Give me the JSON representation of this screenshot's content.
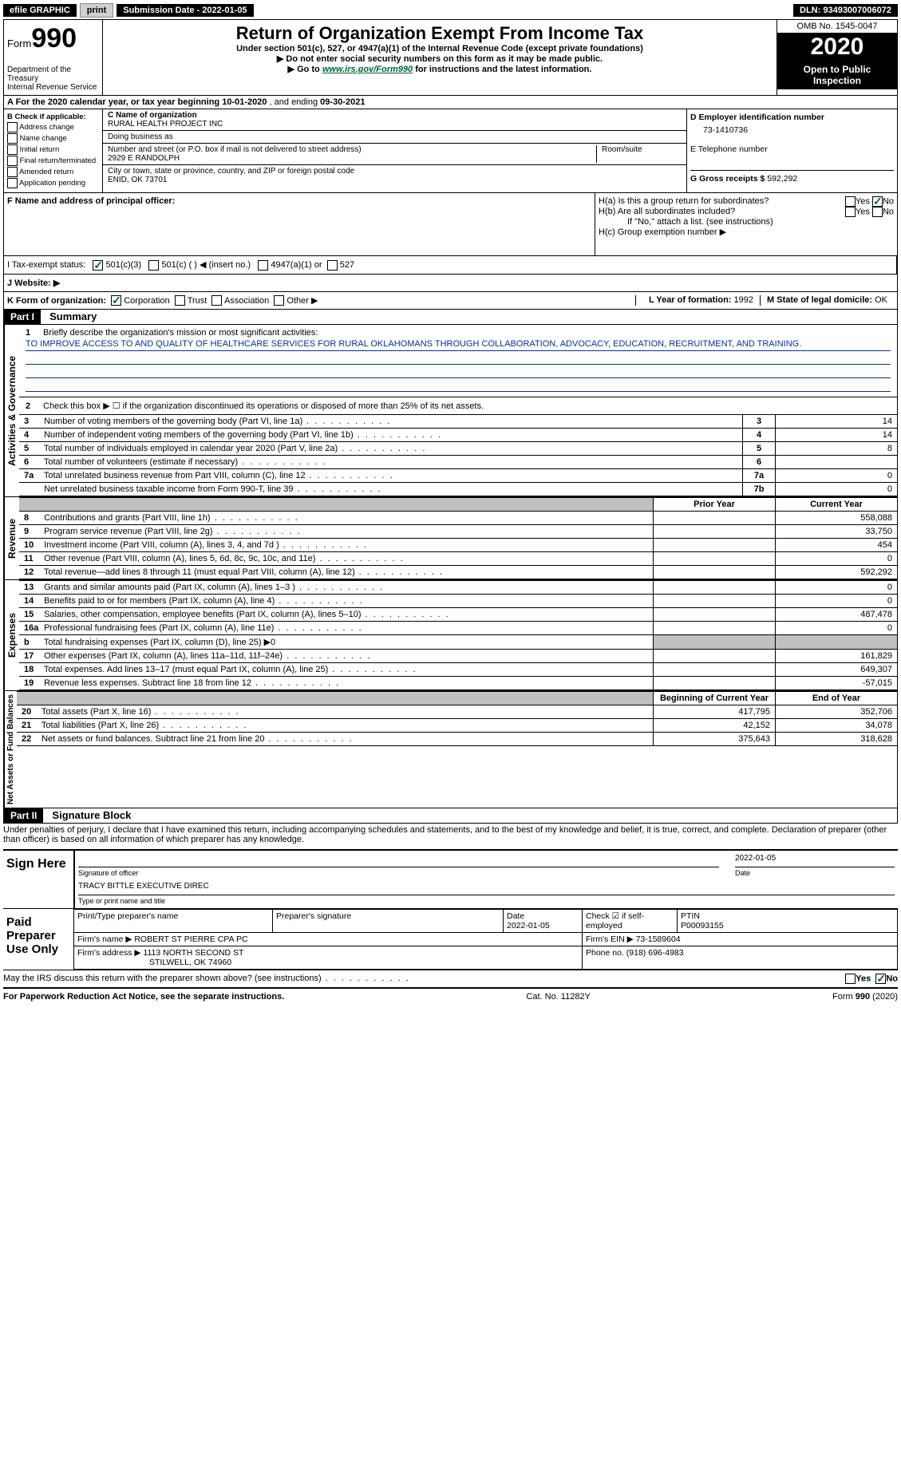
{
  "top": {
    "efile": "efile GRAPHIC",
    "print": "print",
    "sub_date_label": "Submission Date - ",
    "sub_date": "2022-01-05",
    "dln_label": "DLN: ",
    "dln": "93493007006072"
  },
  "header": {
    "form_prefix": "Form",
    "form_number": "990",
    "dept": "Department of the Treasury\nInternal Revenue Service",
    "title": "Return of Organization Exempt From Income Tax",
    "subtitle": "Under section 501(c), 527, or 4947(a)(1) of the Internal Revenue Code (except private foundations)",
    "instr1": "▶ Do not enter social security numbers on this form as it may be made public.",
    "instr2_pre": "▶ Go to ",
    "instr2_link": "www.irs.gov/Form990",
    "instr2_post": " for instructions and the latest information.",
    "omb": "OMB No. 1545-0047",
    "year": "2020",
    "open": "Open to Public Inspection"
  },
  "section_a": {
    "prefix": "A For the 2020 calendar year, or tax year beginning ",
    "begin": "10-01-2020",
    "mid": " , and ending ",
    "end": "09-30-2021"
  },
  "box_b": {
    "label": "B Check if applicable:",
    "addr": "Address change",
    "name": "Name change",
    "init": "Initial return",
    "final": "Final return/terminated",
    "amend": "Amended return",
    "app": "Application pending"
  },
  "box_c": {
    "name_label": "C Name of organization",
    "name": "RURAL HEALTH PROJECT INC",
    "dba_label": "Doing business as",
    "dba": "",
    "street_label": "Number and street (or P.O. box if mail is not delivered to street address)",
    "room_label": "Room/suite",
    "street": "2929 E RANDOLPH",
    "city_label": "City or town, state or province, country, and ZIP or foreign postal code",
    "city": "ENID, OK  73701"
  },
  "box_de": {
    "d_label": "D Employer identification number",
    "ein": "73-1410736",
    "e_label": "E Telephone number",
    "phone": "",
    "g_label": "G Gross receipts $ ",
    "g_amount": "592,292"
  },
  "box_f": {
    "label": "F Name and address of principal officer:",
    "value": ""
  },
  "box_h": {
    "ha": "H(a)  Is this a group return for subordinates?",
    "hb": "H(b)  Are all subordinates included?",
    "hb_note": "If \"No,\" attach a list. (see instructions)",
    "hc": "H(c)  Group exemption number ▶",
    "yes": "Yes",
    "no": "No"
  },
  "box_i": {
    "label": "I   Tax-exempt status:",
    "opt1": "501(c)(3)",
    "opt2": "501(c) (  ) ◀ (insert no.)",
    "opt3": "4947(a)(1) or",
    "opt4": "527"
  },
  "box_j": {
    "label": "J   Website: ▶"
  },
  "box_k": {
    "label": "K Form of organization:",
    "corp": "Corporation",
    "trust": "Trust",
    "assoc": "Association",
    "other": "Other ▶",
    "l_label": "L Year of formation: ",
    "l_val": "1992",
    "m_label": "M State of legal domicile: ",
    "m_val": "OK"
  },
  "part1": {
    "header": "Part I",
    "title": "Summary",
    "l1": "Briefly describe the organization's mission or most significant activities:",
    "mission": "TO IMPROVE ACCESS TO AND QUALITY OF HEALTHCARE SERVICES FOR RURAL OKLAHOMANS THROUGH COLLABORATION, ADVOCACY, EDUCATION, RECRUITMENT, AND TRAINING.",
    "l2": "Check this box ▶ ☐ if the organization discontinued its operations or disposed of more than 25% of its net assets.",
    "vlabel1": "Activities & Governance",
    "vlabel2": "Revenue",
    "vlabel3": "Expenses",
    "vlabel4": "Net Assets or Fund Balances",
    "prior_year": "Prior Year",
    "current_year": "Current Year",
    "begin_year": "Beginning of Current Year",
    "end_year": "End of Year",
    "rows_gov": [
      {
        "n": "3",
        "t": "Number of voting members of the governing body (Part VI, line 1a)",
        "k": "3",
        "v": "14"
      },
      {
        "n": "4",
        "t": "Number of independent voting members of the governing body (Part VI, line 1b)",
        "k": "4",
        "v": "14"
      },
      {
        "n": "5",
        "t": "Total number of individuals employed in calendar year 2020 (Part V, line 2a)",
        "k": "5",
        "v": "8"
      },
      {
        "n": "6",
        "t": "Total number of volunteers (estimate if necessary)",
        "k": "6",
        "v": ""
      },
      {
        "n": "7a",
        "t": "Total unrelated business revenue from Part VIII, column (C), line 12",
        "k": "7a",
        "v": "0"
      },
      {
        "n": "",
        "t": "Net unrelated business taxable income from Form 990-T, line 39",
        "k": "7b",
        "v": "0"
      }
    ],
    "rows_rev": [
      {
        "n": "8",
        "t": "Contributions and grants (Part VIII, line 1h)",
        "p": "",
        "c": "558,088"
      },
      {
        "n": "9",
        "t": "Program service revenue (Part VIII, line 2g)",
        "p": "",
        "c": "33,750"
      },
      {
        "n": "10",
        "t": "Investment income (Part VIII, column (A), lines 3, 4, and 7d )",
        "p": "",
        "c": "454"
      },
      {
        "n": "11",
        "t": "Other revenue (Part VIII, column (A), lines 5, 6d, 8c, 9c, 10c, and 11e)",
        "p": "",
        "c": "0"
      },
      {
        "n": "12",
        "t": "Total revenue—add lines 8 through 11 (must equal Part VIII, column (A), line 12)",
        "p": "",
        "c": "592,292"
      }
    ],
    "rows_exp": [
      {
        "n": "13",
        "t": "Grants and similar amounts paid (Part IX, column (A), lines 1–3 )",
        "p": "",
        "c": "0"
      },
      {
        "n": "14",
        "t": "Benefits paid to or for members (Part IX, column (A), line 4)",
        "p": "",
        "c": "0"
      },
      {
        "n": "15",
        "t": "Salaries, other compensation, employee benefits (Part IX, column (A), lines 5–10)",
        "p": "",
        "c": "487,478"
      },
      {
        "n": "16a",
        "t": "Professional fundraising fees (Part IX, column (A), line 11e)",
        "p": "",
        "c": "0"
      },
      {
        "n": "b",
        "t": "Total fundraising expenses (Part IX, column (D), line 25) ▶0",
        "shaded": true
      },
      {
        "n": "17",
        "t": "Other expenses (Part IX, column (A), lines 11a–11d, 11f–24e)",
        "p": "",
        "c": "161,829"
      },
      {
        "n": "18",
        "t": "Total expenses. Add lines 13–17 (must equal Part IX, column (A), line 25)",
        "p": "",
        "c": "649,307"
      },
      {
        "n": "19",
        "t": "Revenue less expenses. Subtract line 18 from line 12",
        "p": "",
        "c": "-57,015"
      }
    ],
    "rows_net": [
      {
        "n": "20",
        "t": "Total assets (Part X, line 16)",
        "p": "417,795",
        "c": "352,706"
      },
      {
        "n": "21",
        "t": "Total liabilities (Part X, line 26)",
        "p": "42,152",
        "c": "34,078"
      },
      {
        "n": "22",
        "t": "Net assets or fund balances. Subtract line 21 from line 20",
        "p": "375,643",
        "c": "318,628"
      }
    ]
  },
  "part2": {
    "header": "Part II",
    "title": "Signature Block",
    "declaration": "Under penalties of perjury, I declare that I have examined this return, including accompanying schedules and statements, and to the best of my knowledge and belief, it is true, correct, and complete. Declaration of preparer (other than officer) is based on all information of which preparer has any knowledge.",
    "sign_here": "Sign Here",
    "sig_officer": "Signature of officer",
    "sig_date": "2022-01-05",
    "date_label": "Date",
    "officer_name": "TRACY BITTLE  EXECUTIVE DIREC",
    "type_label": "Type or print name and title",
    "paid_prep": "Paid Preparer Use Only",
    "prep_name_label": "Print/Type preparer's name",
    "prep_sig_label": "Preparer's signature",
    "prep_date": "2022-01-05",
    "check_if": "Check ☑ if self-employed",
    "ptin_label": "PTIN",
    "ptin": "P00093155",
    "firm_name_label": "Firm's name      ▶ ",
    "firm_name": "ROBERT ST PIERRE CPA PC",
    "firm_ein_label": "Firm's EIN ▶ ",
    "firm_ein": "73-1589604",
    "firm_addr_label": "Firm's address ▶ ",
    "firm_addr": "1113 NORTH SECOND ST",
    "firm_city": "STILWELL, OK  74960",
    "phone_label": "Phone no. ",
    "phone": "(918) 696-4983",
    "discuss": "May the IRS discuss this return with the preparer shown above? (see instructions)"
  },
  "footer": {
    "pra": "For Paperwork Reduction Act Notice, see the separate instructions.",
    "cat": "Cat. No. 11282Y",
    "form": "Form 990 (2020)"
  }
}
